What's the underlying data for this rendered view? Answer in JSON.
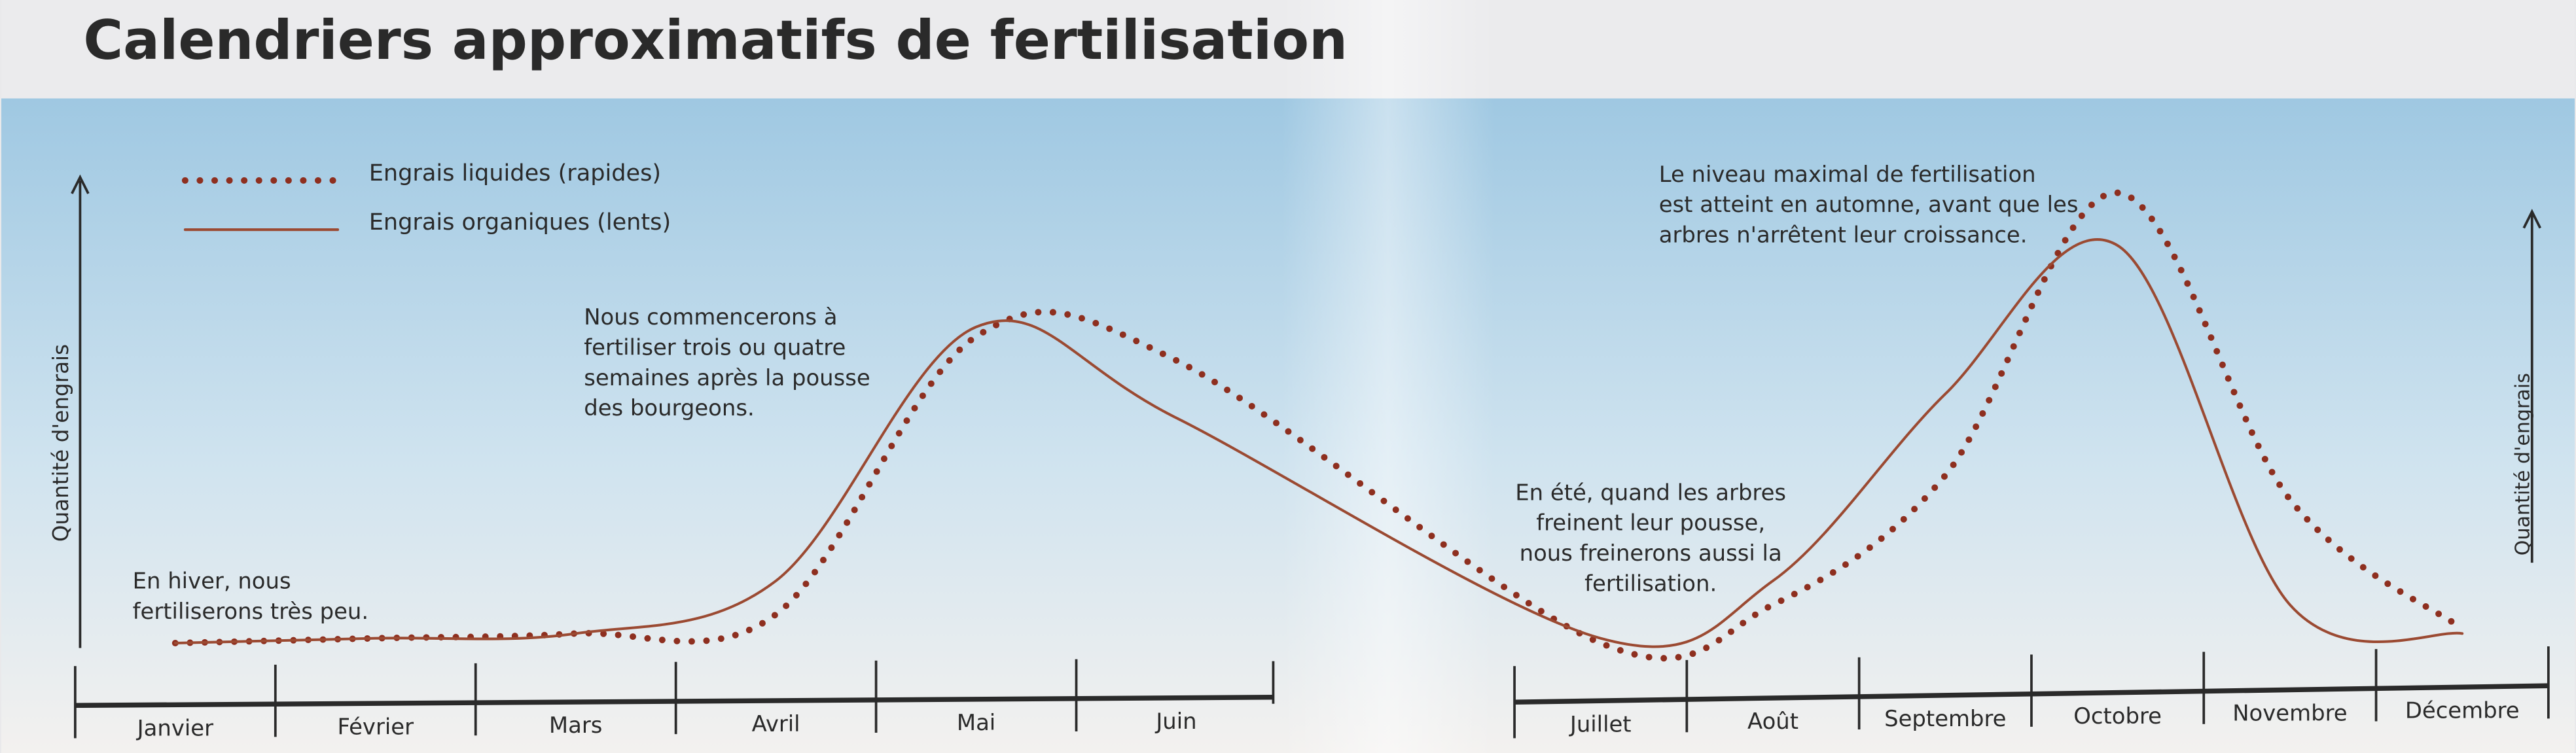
{
  "chart_data": {
    "type": "line",
    "title": "Calendriers approximatifs de fertilisation",
    "y_label": "Quantité d'engrais",
    "categories": [
      "Janvier",
      "Février",
      "Mars",
      "Avril",
      "Mai",
      "Juin",
      "Juillet",
      "Août",
      "Septembre",
      "Octobre",
      "Novembre",
      "Décembre"
    ],
    "series": [
      {
        "name": "Engrais liquides (rapides)",
        "style": "dotted",
        "color": "#8e2f1f",
        "values": [
          0,
          1,
          2,
          6,
          64,
          59,
          0,
          8,
          35,
          94,
          30,
          3
        ]
      },
      {
        "name": "Engrais organiques (lents)",
        "style": "solid",
        "color": "#9b4a32",
        "values": [
          0,
          1,
          2,
          13,
          66,
          47,
          1,
          13,
          52,
          83,
          8,
          2
        ]
      }
    ],
    "ylim": [
      0,
      100
    ],
    "legend": "top-left",
    "annotations": [
      {
        "lines": [
          "En hiver, nous",
          "fertiliserons très peu."
        ]
      },
      {
        "lines": [
          "Nous commencerons à",
          "fertiliser trois ou quatre",
          "semaines après la pousse",
          "des bourgeons."
        ]
      },
      {
        "lines": [
          "En été, quand les arbres",
          "freinent leur pousse,",
          "nous freinerons aussi la",
          "fertilisation."
        ]
      },
      {
        "lines": [
          "Le niveau maximal de fertilisation",
          "est atteint en automne, avant que les",
          "arbres n'arrêtent leur croissance."
        ]
      }
    ]
  }
}
